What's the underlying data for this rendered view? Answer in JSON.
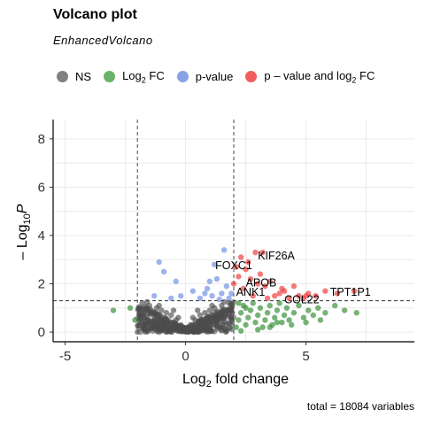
{
  "chart_data": {
    "type": "scatter",
    "title": "Volcano plot",
    "subtitle": "EnhancedVolcano",
    "xlabel_main": "Log",
    "xlabel_sub": "2",
    "xlabel_rest": " fold change",
    "ylabel_pre": "– Log",
    "ylabel_sub": "10",
    "ylabel_var": "P",
    "xlim": [
      -5.5,
      9.5
    ],
    "ylim": [
      -0.4,
      8.8
    ],
    "xticks": [
      -5,
      0,
      5
    ],
    "yticks": [
      0,
      2,
      4,
      6,
      8
    ],
    "grid": true,
    "legend_position": "top",
    "caption": "total = 18084 variables",
    "fc_cutoff": [
      -2,
      2
    ],
    "p_cutoff": 1.3,
    "legend": [
      {
        "key": "NS",
        "label": "NS",
        "sub": "",
        "tail": "",
        "color": "#555555"
      },
      {
        "key": "FC",
        "label": "Log",
        "sub": "2",
        "tail": " FC",
        "color": "#3a9a3a"
      },
      {
        "key": "P",
        "label": "p-value",
        "sub": "",
        "tail": "",
        "color": "#6a8be0"
      },
      {
        "key": "PFC",
        "label": "p – value and log",
        "sub": "2",
        "tail": " FC",
        "color": "#ee3333"
      }
    ],
    "series": [
      {
        "key": "NS",
        "color": "#4d4d4d",
        "points": [
          [
            -1.8,
            1.2
          ],
          [
            -1.5,
            1.1
          ],
          [
            -1.2,
            1.0
          ],
          [
            -1.0,
            0.9
          ],
          [
            -0.8,
            0.8
          ],
          [
            -0.6,
            0.7
          ],
          [
            -0.4,
            0.5
          ],
          [
            -0.2,
            0.3
          ],
          [
            0.0,
            0.1
          ],
          [
            0.2,
            0.3
          ],
          [
            0.4,
            0.5
          ],
          [
            0.6,
            0.7
          ],
          [
            0.8,
            0.8
          ],
          [
            1.0,
            0.9
          ],
          [
            1.2,
            1.0
          ],
          [
            1.5,
            1.1
          ],
          [
            1.8,
            1.2
          ],
          [
            -1.6,
            0.9
          ],
          [
            -1.3,
            0.6
          ],
          [
            -1.0,
            0.4
          ],
          [
            -0.7,
            0.3
          ],
          [
            -0.4,
            0.15
          ],
          [
            0.0,
            0.05
          ],
          [
            0.4,
            0.15
          ],
          [
            0.7,
            0.3
          ],
          [
            1.0,
            0.4
          ],
          [
            1.3,
            0.6
          ],
          [
            1.6,
            0.9
          ],
          [
            -1.9,
            0.6
          ],
          [
            1.9,
            0.6
          ],
          [
            -1.7,
            0.3
          ],
          [
            1.7,
            0.3
          ],
          [
            -1.4,
            0.2
          ],
          [
            1.4,
            0.2
          ],
          [
            -0.9,
            0.1
          ],
          [
            0.9,
            0.1
          ],
          [
            -1.1,
            1.1
          ],
          [
            1.1,
            1.1
          ],
          [
            -0.5,
            0.9
          ],
          [
            0.5,
            0.9
          ],
          [
            -0.3,
            0.6
          ],
          [
            0.3,
            0.6
          ],
          [
            1.9,
            1.0
          ],
          [
            -1.9,
            1.0
          ],
          [
            0.1,
            0.2
          ],
          [
            -0.1,
            0.2
          ],
          [
            1.6,
            1.25
          ],
          [
            -1.6,
            1.25
          ],
          [
            0.8,
            0.55
          ],
          [
            -0.8,
            0.55
          ]
        ]
      },
      {
        "key": "FC",
        "color": "#2e8b2e",
        "points": [
          [
            -3.0,
            0.9
          ],
          [
            -2.3,
            1.0
          ],
          [
            -2.1,
            0.5
          ],
          [
            2.1,
            0.2
          ],
          [
            2.2,
            0.5
          ],
          [
            2.3,
            0.8
          ],
          [
            2.4,
            1.1
          ],
          [
            2.5,
            0.3
          ],
          [
            2.6,
            0.6
          ],
          [
            2.7,
            0.9
          ],
          [
            2.8,
            1.2
          ],
          [
            2.9,
            0.4
          ],
          [
            3.0,
            0.7
          ],
          [
            3.1,
            1.0
          ],
          [
            3.2,
            0.2
          ],
          [
            3.3,
            0.5
          ],
          [
            3.4,
            0.8
          ],
          [
            3.5,
            1.1
          ],
          [
            3.6,
            0.3
          ],
          [
            3.7,
            0.6
          ],
          [
            3.8,
            0.9
          ],
          [
            3.9,
            1.2
          ],
          [
            4.0,
            0.4
          ],
          [
            4.1,
            0.7
          ],
          [
            4.2,
            1.0
          ],
          [
            4.3,
            0.5
          ],
          [
            4.5,
            0.8
          ],
          [
            4.7,
            1.1
          ],
          [
            4.9,
            0.6
          ],
          [
            5.1,
            0.9
          ],
          [
            5.3,
            0.7
          ],
          [
            5.5,
            1.0
          ],
          [
            5.8,
            0.8
          ],
          [
            6.2,
            1.1
          ],
          [
            6.6,
            0.9
          ],
          [
            7.1,
            0.8
          ],
          [
            2.2,
            1.2
          ],
          [
            2.5,
            1.0
          ],
          [
            3.0,
            0.1
          ],
          [
            3.5,
            0.2
          ],
          [
            2.3,
            0.05
          ],
          [
            4.4,
            0.3
          ],
          [
            5.0,
            0.4
          ],
          [
            5.6,
            0.5
          ],
          [
            3.8,
            0.4
          ]
        ]
      },
      {
        "key": "P",
        "color": "#6a8be0",
        "points": [
          [
            -1.1,
            2.9
          ],
          [
            -0.9,
            2.5
          ],
          [
            -0.4,
            2.1
          ],
          [
            -0.2,
            1.5
          ],
          [
            0.3,
            1.7
          ],
          [
            0.6,
            1.4
          ],
          [
            0.9,
            1.8
          ],
          [
            1.1,
            1.5
          ],
          [
            1.3,
            2.2
          ],
          [
            1.5,
            1.6
          ],
          [
            1.6,
            3.4
          ],
          [
            1.7,
            1.9
          ],
          [
            1.8,
            1.4
          ],
          [
            1.9,
            1.6
          ],
          [
            1.2,
            2.8
          ],
          [
            0.8,
            1.6
          ],
          [
            -0.6,
            1.4
          ],
          [
            1.4,
            1.35
          ],
          [
            1.0,
            2.1
          ],
          [
            -1.3,
            1.5
          ]
        ]
      },
      {
        "key": "PFC",
        "color": "#ee3333",
        "points": [
          [
            2.1,
            2.7
          ],
          [
            2.3,
            3.1
          ],
          [
            2.5,
            2.6
          ],
          [
            2.7,
            2.2
          ],
          [
            2.9,
            3.3
          ],
          [
            3.1,
            2.4
          ],
          [
            3.3,
            1.9
          ],
          [
            3.5,
            2.1
          ],
          [
            3.7,
            1.5
          ],
          [
            3.9,
            1.6
          ],
          [
            4.1,
            1.7
          ],
          [
            4.3,
            1.4
          ],
          [
            4.5,
            1.9
          ],
          [
            4.7,
            1.5
          ],
          [
            4.9,
            1.4
          ],
          [
            5.1,
            1.6
          ],
          [
            5.4,
            1.5
          ],
          [
            5.8,
            1.7
          ],
          [
            6.3,
            1.6
          ],
          [
            7.0,
            1.7
          ],
          [
            2.2,
            2.3
          ],
          [
            2.6,
            2.9
          ],
          [
            3.0,
            2.0
          ],
          [
            3.4,
            1.4
          ],
          [
            2.4,
            1.8
          ],
          [
            2.8,
            1.5
          ],
          [
            3.2,
            3.3
          ],
          [
            2.0,
            2.0
          ],
          [
            4.0,
            1.8
          ],
          [
            5.0,
            1.5
          ]
        ]
      }
    ],
    "labels": [
      {
        "text": "KIF26A",
        "x": 3.0,
        "y": 3.0,
        "anchor": "start"
      },
      {
        "text": "FOXC1",
        "x": 2.0,
        "y": 2.6,
        "anchor": "middle"
      },
      {
        "text": "APOB",
        "x": 2.5,
        "y": 1.9,
        "anchor": "start"
      },
      {
        "text": "ANK1",
        "x": 2.1,
        "y": 1.5,
        "anchor": "start"
      },
      {
        "text": "COL22",
        "x": 4.1,
        "y": 1.2,
        "anchor": "start"
      },
      {
        "text": "TPT1P1",
        "x": 6.0,
        "y": 1.5,
        "anchor": "start"
      }
    ]
  }
}
